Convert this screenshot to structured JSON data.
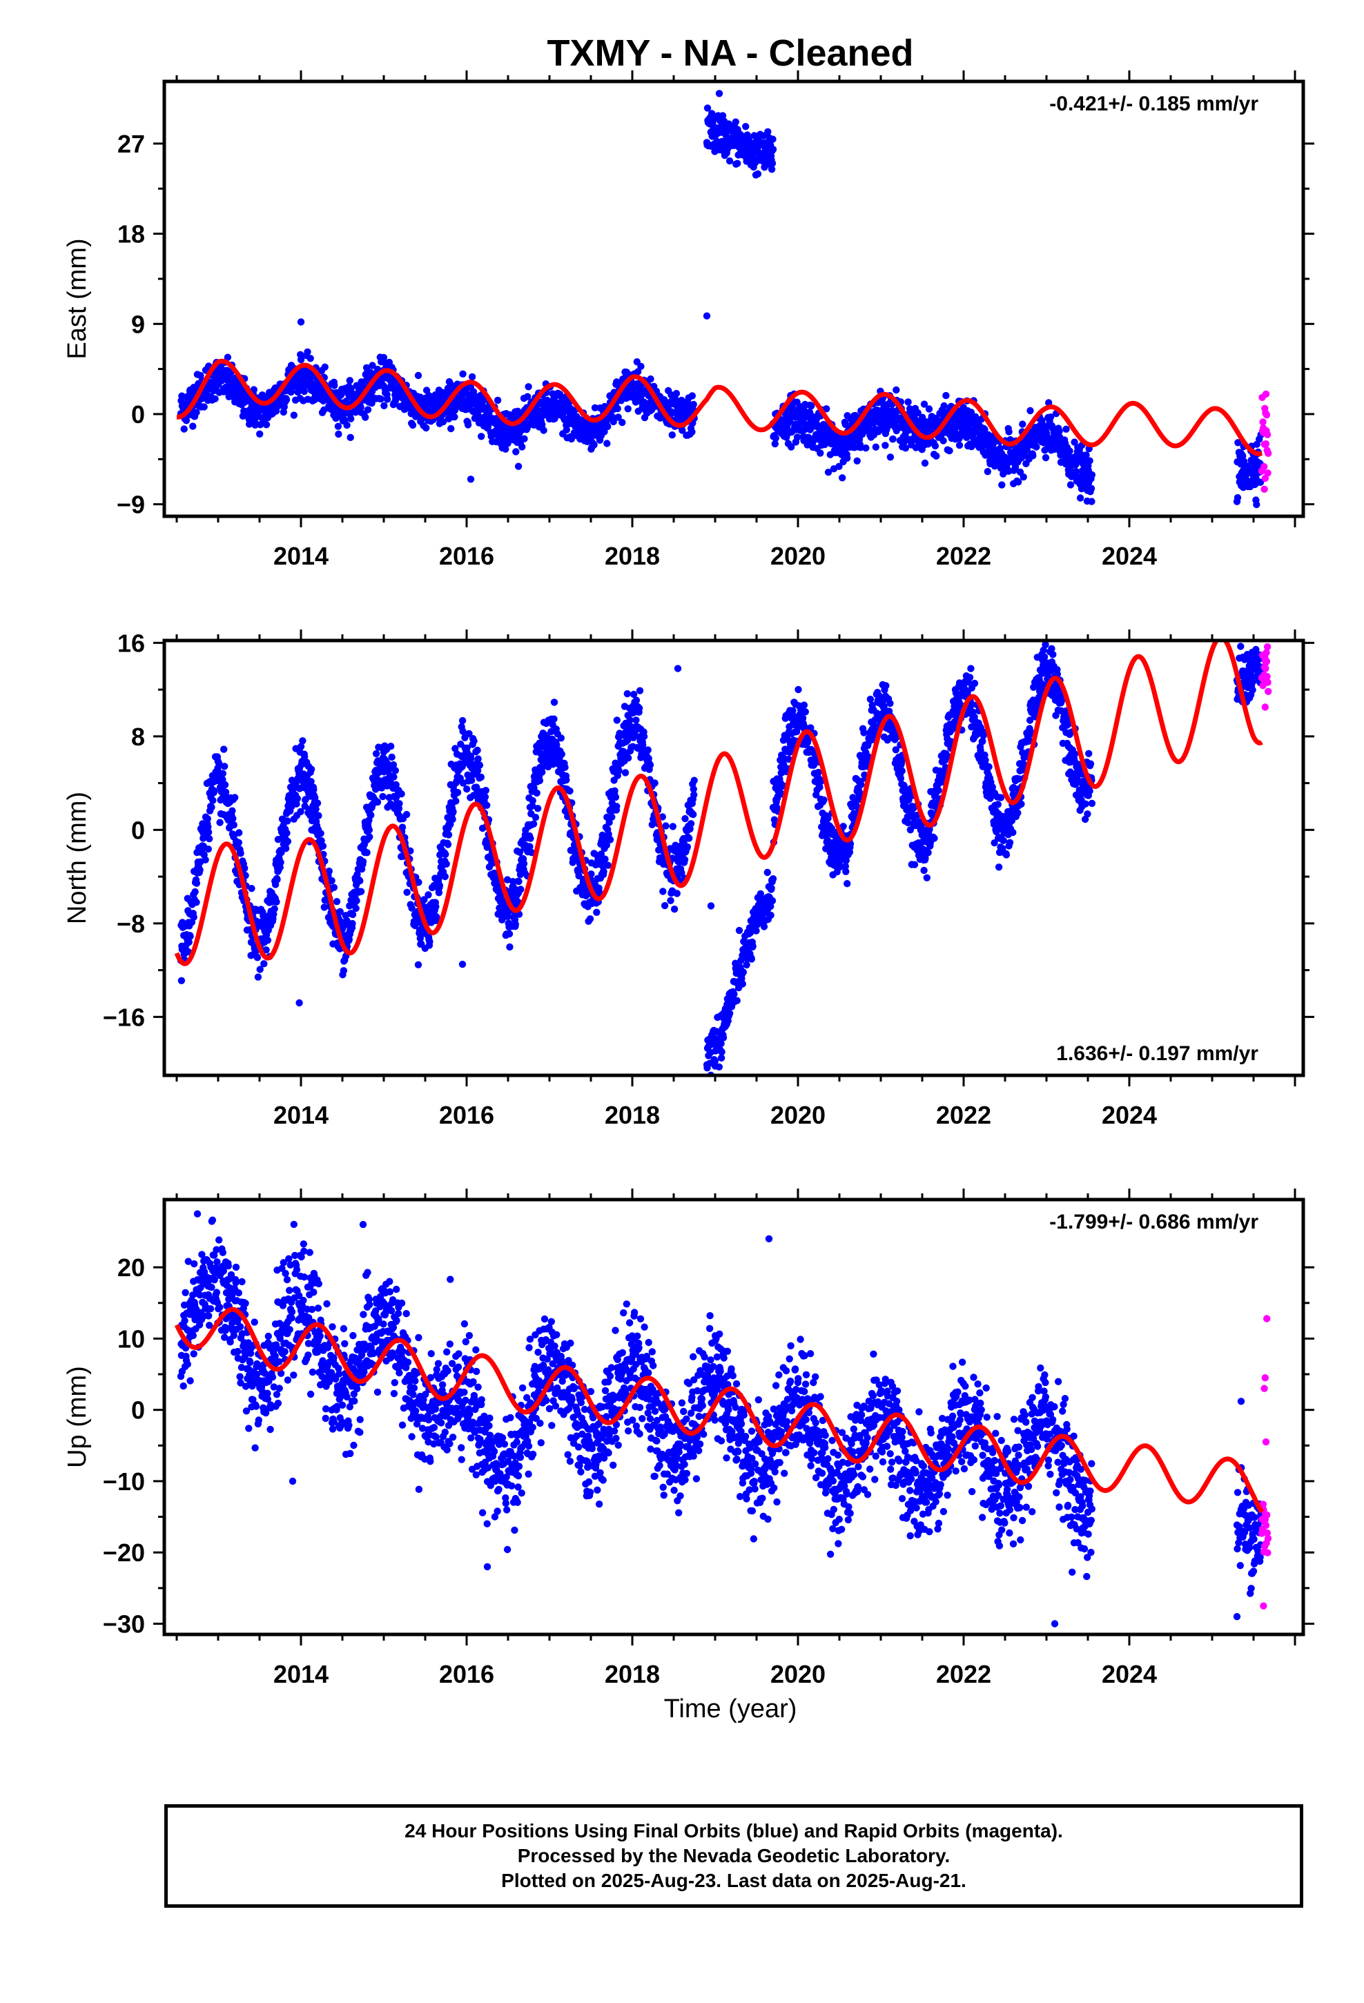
{
  "colors": {
    "final": "#0000ff",
    "rapid": "#ff00ff",
    "model": "#ff0000",
    "frame": "#000000"
  },
  "chart_data": {
    "type": "scatter",
    "title": "TXMY  - NA - Cleaned",
    "xlabel": "Time (year)",
    "xlim": [
      2012.35,
      2026.1
    ],
    "xticks": [
      2014,
      2016,
      2018,
      2020,
      2022,
      2024
    ],
    "xtick_labels": [
      "2014",
      "2016",
      "2018",
      "2020",
      "2022",
      "2024"
    ],
    "panels": [
      {
        "ylabel": "East (mm)",
        "ylim": [
          -10.2,
          33.2
        ],
        "yticks": [
          -9,
          0,
          9,
          18,
          27
        ],
        "ytick_labels": [
          "−9",
          "0",
          "9",
          "18",
          "27"
        ],
        "rate": "-0.421+/- 0.185 mm/yr",
        "rate_position": "top-right",
        "series": [
          {
            "role": "final",
            "segments": [
              {
                "start": 2012.55,
                "end": 2018.75,
                "base": [
                  [
                    2012.55,
                    1.5
                  ],
                  [
                    2013.0,
                    2.5
                  ],
                  [
                    2013.5,
                    1.5
                  ],
                  [
                    2014.0,
                    2.5
                  ],
                  [
                    2014.5,
                    2.0
                  ],
                  [
                    2015.0,
                    2.2
                  ],
                  [
                    2015.5,
                    1.5
                  ],
                  [
                    2016.0,
                    0.3
                  ],
                  [
                    2016.5,
                    -0.3
                  ],
                  [
                    2017.0,
                    -0.5
                  ],
                  [
                    2017.5,
                    -0.6
                  ],
                  [
                    2018.0,
                    1.8
                  ],
                  [
                    2018.5,
                    1.0
                  ],
                  [
                    2018.75,
                    0.0
                  ]
                ],
                "amp": 1.2,
                "phase": 0.0,
                "noise": 1.0,
                "step": 0.0039
              },
              {
                "start": 2018.9,
                "end": 2019.7,
                "base": [
                  [
                    2018.9,
                    28.0
                  ],
                  [
                    2019.3,
                    27.0
                  ],
                  [
                    2019.7,
                    26.0
                  ]
                ],
                "amp": 0.4,
                "phase": 0.0,
                "noise": 1.0,
                "step": 0.004
              },
              {
                "start": 2019.7,
                "end": 2023.55,
                "base": [
                  [
                    2019.7,
                    -1.0
                  ],
                  [
                    2020.5,
                    -2.0
                  ],
                  [
                    2021.0,
                    -1.0
                  ],
                  [
                    2021.5,
                    -0.6
                  ],
                  [
                    2022.0,
                    -2.0
                  ],
                  [
                    2022.5,
                    -3.5
                  ],
                  [
                    2023.0,
                    -3.0
                  ],
                  [
                    2023.55,
                    -5.5
                  ]
                ],
                "amp": 1.0,
                "phase": 0.0,
                "noise": 1.1,
                "step": 0.0039
              },
              {
                "start": 2025.3,
                "end": 2025.6,
                "base": [
                  [
                    2025.3,
                    -6.0
                  ],
                  [
                    2025.6,
                    -4.5
                  ]
                ],
                "amp": 0.0,
                "phase": 0.0,
                "noise": 1.4,
                "step": 0.004
              }
            ],
            "outliers": [
              [
                2014.0,
                9.2
              ],
              [
                2016.05,
                -6.5
              ],
              [
                2018.9,
                9.8
              ],
              [
                2019.05,
                32.0
              ]
            ]
          },
          {
            "role": "rapid",
            "segments": [
              {
                "start": 2025.6,
                "end": 2025.68,
                "base": [
                  [
                    2025.6,
                    -2.5
                  ],
                  [
                    2025.68,
                    -2.5
                  ]
                ],
                "amp": 0.0,
                "phase": 0.0,
                "noise": 2.2,
                "step": 0.0045
              }
            ],
            "outliers": [
              [
                2025.65,
                2.0
              ],
              [
                2025.63,
                -7.5
              ]
            ]
          },
          {
            "role": "model",
            "start": 2012.5,
            "end": 2025.6,
            "trend": [
              [
                2012.5,
                1.6
              ],
              [
                2013.0,
                3.3
              ],
              [
                2014.0,
                2.9
              ],
              [
                2015.0,
                2.4
              ],
              [
                2016.0,
                1.2
              ],
              [
                2017.0,
                0.9
              ],
              [
                2018.0,
                1.8
              ],
              [
                2018.9,
                0.3
              ],
              [
                2019.0,
                0.7
              ],
              [
                2020.0,
                0.2
              ],
              [
                2021.0,
                0.0
              ],
              [
                2022.0,
                -0.6
              ],
              [
                2023.0,
                -1.3
              ],
              [
                2024.0,
                -0.9
              ],
              [
                2025.0,
                -1.4
              ],
              [
                2025.6,
                -2.0
              ]
            ],
            "amp": 2.0,
            "phase": 0.05
          }
        ]
      },
      {
        "ylabel": "North (mm)",
        "ylim": [
          -21.0,
          16.2
        ],
        "yticks": [
          -16,
          -8,
          0,
          8,
          16
        ],
        "ytick_labels": [
          "−16",
          "−8",
          "0",
          "8",
          "16"
        ],
        "rate": "1.636+/- 0.197 mm/yr",
        "rate_position": "bottom-right",
        "series": [
          {
            "role": "final",
            "segments": [
              {
                "start": 2012.55,
                "end": 2018.75,
                "base": [
                  [
                    2012.55,
                    -4.0
                  ],
                  [
                    2013.5,
                    -2.5
                  ],
                  [
                    2014.5,
                    -2.0
                  ],
                  [
                    2015.5,
                    -1.0
                  ],
                  [
                    2016.5,
                    0.0
                  ],
                  [
                    2017.5,
                    1.5
                  ],
                  [
                    2018.5,
                    3.0
                  ],
                  [
                    2018.75,
                    3.5
                  ]
                ],
                "amp": 7.0,
                "phase": 0.0,
                "noise": 1.3,
                "step": 0.0039
              },
              {
                "start": 2018.9,
                "end": 2019.7,
                "base": [
                  [
                    2018.9,
                    -19.0
                  ],
                  [
                    2019.05,
                    -18.0
                  ],
                  [
                    2019.3,
                    -12.0
                  ],
                  [
                    2019.5,
                    -8.0
                  ],
                  [
                    2019.7,
                    -5.0
                  ]
                ],
                "amp": 0.0,
                "phase": 0.0,
                "noise": 1.0,
                "step": 0.004
              },
              {
                "start": 2019.7,
                "end": 2023.55,
                "base": [
                  [
                    2019.7,
                    3.0
                  ],
                  [
                    2020.5,
                    4.0
                  ],
                  [
                    2021.5,
                    5.0
                  ],
                  [
                    2022.5,
                    6.0
                  ],
                  [
                    2023.55,
                    9.5
                  ]
                ],
                "amp": 6.0,
                "phase": 0.0,
                "noise": 1.2,
                "step": 0.0039
              },
              {
                "start": 2025.3,
                "end": 2025.6,
                "base": [
                  [
                    2025.3,
                    12.5
                  ],
                  [
                    2025.6,
                    14.0
                  ]
                ],
                "amp": 0.0,
                "phase": 0.0,
                "noise": 1.2,
                "step": 0.004
              }
            ],
            "outliers": [
              [
                2013.98,
                -14.8
              ],
              [
                2015.95,
                -11.5
              ],
              [
                2018.55,
                13.8
              ],
              [
                2019.0,
                -20.2
              ],
              [
                2018.95,
                -6.5
              ]
            ]
          },
          {
            "role": "rapid",
            "segments": [
              {
                "start": 2025.6,
                "end": 2025.68,
                "base": [
                  [
                    2025.6,
                    13.5
                  ],
                  [
                    2025.68,
                    13.5
                  ]
                ],
                "amp": 0.0,
                "phase": 0.0,
                "noise": 1.2,
                "step": 0.0045
              }
            ],
            "outliers": [
              [
                2025.64,
                10.5
              ]
            ]
          },
          {
            "role": "model",
            "start": 2012.5,
            "end": 2025.6,
            "trend": [
              [
                2012.5,
                -6.5
              ],
              [
                2013.5,
                -6.0
              ],
              [
                2014.5,
                -5.7
              ],
              [
                2015.5,
                -4.0
              ],
              [
                2016.5,
                -2.0
              ],
              [
                2017.5,
                -1.0
              ],
              [
                2018.5,
                0.0
              ],
              [
                2019.5,
                2.5
              ],
              [
                2020.5,
                4.0
              ],
              [
                2021.5,
                5.2
              ],
              [
                2022.5,
                7.2
              ],
              [
                2023.5,
                8.5
              ],
              [
                2024.5,
                10.7
              ],
              [
                2025.5,
                12.0
              ],
              [
                2025.6,
                12.5
              ]
            ],
            "amp": 5.0,
            "phase": 0.1
          }
        ]
      },
      {
        "ylabel": "Up (mm)",
        "ylim": [
          -31.5,
          29.5
        ],
        "yticks": [
          -30,
          -20,
          -10,
          0,
          10,
          20
        ],
        "ytick_labels": [
          "−30",
          "−20",
          "−10",
          "0",
          "10",
          "20"
        ],
        "rate": "-1.799+/- 0.686 mm/yr",
        "rate_position": "top-right",
        "series": [
          {
            "role": "final",
            "segments": [
              {
                "start": 2012.55,
                "end": 2023.55,
                "base": [
                  [
                    2012.55,
                    15.0
                  ],
                  [
                    2013.5,
                    10.0
                  ],
                  [
                    2014.5,
                    8.0
                  ],
                  [
                    2015.5,
                    5.0
                  ],
                  [
                    2016.2,
                    -6.0
                  ],
                  [
                    2017.0,
                    1.0
                  ],
                  [
                    2018.0,
                    0.0
                  ],
                  [
                    2019.0,
                    -1.0
                  ],
                  [
                    2020.0,
                    -4.0
                  ],
                  [
                    2021.0,
                    -6.0
                  ],
                  [
                    2022.0,
                    -7.0
                  ],
                  [
                    2023.0,
                    -7.0
                  ],
                  [
                    2023.55,
                    -9.0
                  ]
                ],
                "amp": 5.5,
                "phase": 0.0,
                "noise": 3.8,
                "step": 0.0039
              },
              {
                "start": 2025.3,
                "end": 2025.6,
                "base": [
                  [
                    2025.3,
                    -15.0
                  ],
                  [
                    2025.6,
                    -18.0
                  ]
                ],
                "amp": 0.0,
                "phase": 0.0,
                "noise": 3.5,
                "step": 0.004
              }
            ],
            "outliers": [
              [
                2012.75,
                27.5
              ],
              [
                2014.75,
                26.0
              ],
              [
                2019.65,
                24.0
              ],
              [
                2023.1,
                -30.0
              ],
              [
                2016.25,
                -22.0
              ],
              [
                2013.9,
                -10.0
              ],
              [
                2025.35,
                1.2
              ],
              [
                2025.3,
                -29.0
              ]
            ]
          },
          {
            "role": "rapid",
            "segments": [
              {
                "start": 2025.6,
                "end": 2025.68,
                "base": [
                  [
                    2025.6,
                    -17.0
                  ],
                  [
                    2025.68,
                    -17.0
                  ]
                ],
                "amp": 0.0,
                "phase": 0.0,
                "noise": 3.0,
                "step": 0.005
              }
            ],
            "outliers": [
              [
                2025.66,
                12.8
              ],
              [
                2025.64,
                4.5
              ],
              [
                2025.63,
                3.0
              ],
              [
                2025.65,
                -4.5
              ],
              [
                2025.62,
                -27.5
              ]
            ]
          },
          {
            "role": "model",
            "start": 2012.5,
            "end": 2025.6,
            "trend": [
              [
                2012.5,
                13.0
              ],
              [
                2013.5,
                9.5
              ],
              [
                2014.5,
                8.0
              ],
              [
                2015.5,
                5.5
              ],
              [
                2016.5,
                3.5
              ],
              [
                2017.5,
                2.0
              ],
              [
                2018.5,
                0.5
              ],
              [
                2019.5,
                -1.0
              ],
              [
                2020.5,
                -3.5
              ],
              [
                2021.5,
                -4.5
              ],
              [
                2022.5,
                -6.5
              ],
              [
                2023.5,
                -7.5
              ],
              [
                2024.5,
                -9.0
              ],
              [
                2025.5,
                -11.0
              ],
              [
                2025.6,
                -11.5
              ]
            ],
            "amp": 3.5,
            "phase": 0.2
          }
        ]
      }
    ]
  },
  "footer": {
    "line1": "24 Hour Positions Using Final Orbits (blue) and Rapid Orbits (magenta).",
    "line2": "Processed by the Nevada Geodetic Laboratory.",
    "line3": "Plotted on 2025-Aug-23. Last data on 2025-Aug-21."
  }
}
